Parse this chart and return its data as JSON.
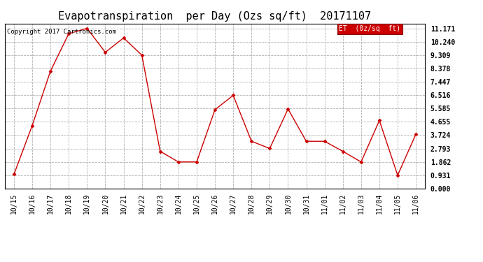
{
  "title": "Evapotranspiration  per Day (Ozs sq/ft)  20171107",
  "copyright": "Copyright 2017 Cartronics.com",
  "legend_label": "ET  (0z/sq  ft)",
  "x_labels": [
    "10/15",
    "10/16",
    "10/17",
    "10/18",
    "10/19",
    "10/20",
    "10/21",
    "10/22",
    "10/23",
    "10/24",
    "10/25",
    "10/26",
    "10/27",
    "10/28",
    "10/29",
    "10/30",
    "10/31",
    "11/01",
    "11/02",
    "11/03",
    "11/04",
    "11/05",
    "11/06"
  ],
  "y_values": [
    1.0,
    4.4,
    8.2,
    10.8,
    11.17,
    9.5,
    10.5,
    9.3,
    2.6,
    1.86,
    1.86,
    5.5,
    6.5,
    3.3,
    2.8,
    5.55,
    3.3,
    3.3,
    2.6,
    1.86,
    4.75,
    0.93,
    3.8
  ],
  "line_color": "#cc0000",
  "marker_color": "#cc0000",
  "background_color": "#ffffff",
  "grid_color": "#b0b0b0",
  "legend_bg": "#cc0000",
  "legend_text_color": "#ffffff",
  "y_ticks": [
    0.0,
    0.931,
    1.862,
    2.793,
    3.724,
    4.655,
    5.585,
    6.516,
    7.447,
    8.378,
    9.309,
    10.24,
    11.171
  ],
  "ylim": [
    0.0,
    11.5
  ],
  "title_fontsize": 11,
  "tick_fontsize": 7,
  "copyright_fontsize": 6.5,
  "legend_fontsize": 7
}
